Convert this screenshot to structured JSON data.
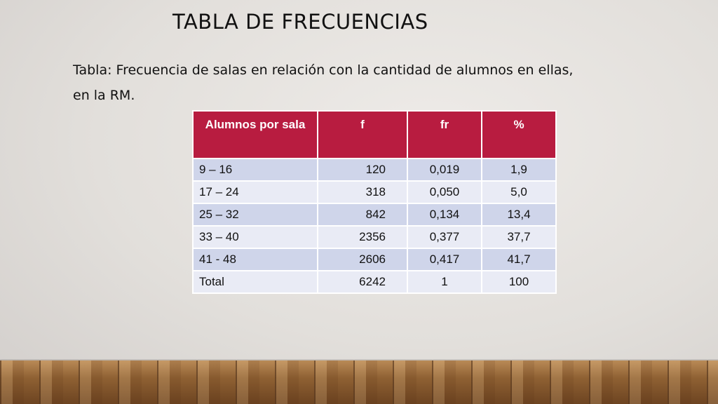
{
  "slide": {
    "title": "TABLA DE FRECUENCIAS",
    "caption": "Tabla: Frecuencia de salas en relación con la cantidad de alumnos en ellas, en la RM."
  },
  "table": {
    "headers": [
      "Alumnos por sala",
      "f",
      "fr",
      "%"
    ],
    "rows": [
      [
        "9 – 16",
        "120",
        "0,019",
        "1,9"
      ],
      [
        "17 – 24",
        "318",
        "0,050",
        "5,0"
      ],
      [
        "25 – 32",
        "842",
        "0,134",
        "13,4"
      ],
      [
        "33 – 40",
        "2356",
        "0,377",
        "37,7"
      ],
      [
        "41 - 48",
        "2606",
        "0,417",
        "41,7"
      ],
      [
        "Total",
        "6242",
        "1",
        "100"
      ]
    ]
  },
  "colors": {
    "header_bg": "#b81c40",
    "row_dark": "#cfd5ea",
    "row_light": "#e9ebf5"
  }
}
